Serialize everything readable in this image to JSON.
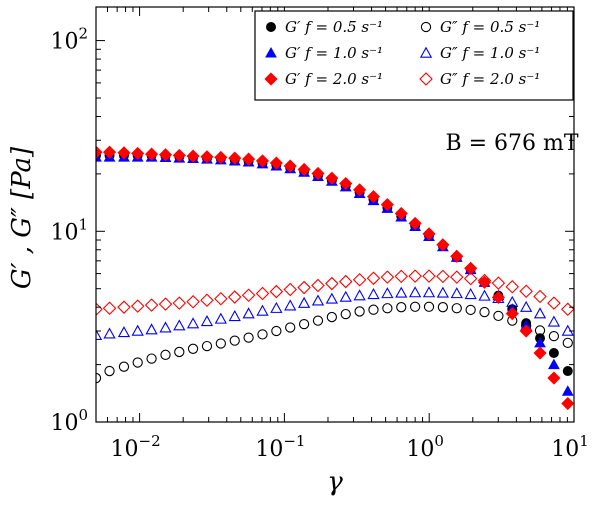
{
  "chart_data": {
    "type": "scatter",
    "title": "",
    "xlabel": "γ",
    "ylabel": "G′ , G″ [Pa]",
    "xscale": "log",
    "yscale": "log",
    "xlim": [
      0.005,
      10
    ],
    "ylim": [
      1,
      150
    ],
    "grid": false,
    "legend_position": "top-right",
    "annotation": "B = 676 mT",
    "x_tick_labels": [
      {
        "label": "10",
        "exp": "−2",
        "value": 0.01
      },
      {
        "label": "10",
        "exp": "−1",
        "value": 0.1
      },
      {
        "label": "10",
        "exp": "0",
        "value": 1
      },
      {
        "label": "10",
        "exp": "1",
        "value": 10
      }
    ],
    "y_tick_labels": [
      {
        "label": "10",
        "exp": "0",
        "value": 1
      },
      {
        "label": "10",
        "exp": "1",
        "value": 10
      },
      {
        "label": "10",
        "exp": "2",
        "value": 100
      }
    ],
    "x": [
      0.005,
      0.0062,
      0.0078,
      0.0097,
      0.0121,
      0.0151,
      0.0188,
      0.0234,
      0.0292,
      0.0364,
      0.0454,
      0.0566,
      0.0706,
      0.088,
      0.1097,
      0.1368,
      0.1706,
      0.2127,
      0.2652,
      0.3307,
      0.4124,
      0.5142,
      0.6412,
      0.7995,
      0.997,
      1.243,
      1.55,
      1.933,
      2.41,
      3.005,
      3.747,
      4.672,
      5.826,
      7.264,
      9.058
    ],
    "series": [
      {
        "name": "G′  f = 0.5 s⁻¹",
        "color": "#000000",
        "marker": "circle",
        "filled": true,
        "values": [
          25,
          25,
          25,
          25,
          25,
          24.8,
          24.6,
          24.4,
          24.2,
          24,
          23.7,
          23.3,
          22.8,
          22.2,
          21.5,
          20.6,
          19.6,
          18.5,
          17.3,
          16,
          14.7,
          13.3,
          12,
          10.7,
          9.5,
          8.4,
          7.3,
          6.3,
          5.4,
          4.6,
          3.9,
          3.3,
          2.75,
          2.3,
          1.85
        ]
      },
      {
        "name": "G″  f = 0.5 s⁻¹",
        "color": "#000000",
        "marker": "circle",
        "filled": false,
        "values": [
          1.7,
          1.85,
          1.95,
          2.05,
          2.15,
          2.25,
          2.33,
          2.42,
          2.5,
          2.58,
          2.67,
          2.77,
          2.88,
          3.0,
          3.13,
          3.26,
          3.4,
          3.55,
          3.68,
          3.8,
          3.88,
          3.95,
          4.0,
          4.02,
          4.02,
          4.0,
          3.95,
          3.87,
          3.77,
          3.6,
          3.4,
          3.2,
          3.02,
          2.82,
          2.6
        ]
      },
      {
        "name": "G′  f = 1.0 s⁻¹",
        "color": "#0000ff",
        "marker": "triangle",
        "filled": true,
        "values": [
          24.5,
          24.5,
          24.5,
          24.5,
          24.5,
          24.4,
          24.2,
          24.1,
          23.9,
          23.7,
          23.4,
          23.1,
          22.6,
          22,
          21.3,
          20.4,
          19.4,
          18.3,
          17.1,
          15.8,
          14.5,
          13.2,
          11.9,
          10.6,
          9.4,
          8.3,
          7.3,
          6.3,
          5.4,
          4.6,
          3.9,
          3.2,
          2.6,
          2.0,
          1.45
        ]
      },
      {
        "name": "G″  f = 1.0 s⁻¹",
        "color": "#0000ff",
        "marker": "triangle",
        "filled": false,
        "values": [
          2.85,
          2.9,
          2.95,
          3.0,
          3.05,
          3.12,
          3.2,
          3.28,
          3.37,
          3.47,
          3.58,
          3.7,
          3.82,
          3.95,
          4.07,
          4.2,
          4.32,
          4.42,
          4.52,
          4.6,
          4.67,
          4.72,
          4.75,
          4.77,
          4.77,
          4.75,
          4.72,
          4.67,
          4.58,
          4.45,
          4.25,
          4.0,
          3.7,
          3.35,
          3.0
        ]
      },
      {
        "name": "G′  f = 2.0 s⁻¹",
        "color": "#ff0000",
        "marker": "diamond",
        "filled": true,
        "values": [
          26,
          26,
          25.8,
          25.6,
          25.4,
          25.2,
          25,
          24.8,
          24.6,
          24.4,
          24.2,
          23.9,
          23.4,
          22.8,
          22,
          21.1,
          20.1,
          19,
          17.8,
          16.5,
          15.2,
          13.8,
          12.4,
          11,
          9.7,
          8.5,
          7.4,
          6.4,
          5.4,
          4.5,
          3.7,
          3.0,
          2.3,
          1.7,
          1.25
        ]
      },
      {
        "name": "G″  f = 2.0 s⁻¹",
        "color": "#ff0000",
        "marker": "diamond",
        "filled": false,
        "values": [
          3.9,
          3.95,
          4.0,
          4.05,
          4.1,
          4.15,
          4.2,
          4.27,
          4.35,
          4.43,
          4.52,
          4.62,
          4.72,
          4.83,
          4.95,
          5.07,
          5.2,
          5.32,
          5.45,
          5.57,
          5.67,
          5.75,
          5.8,
          5.82,
          5.82,
          5.8,
          5.75,
          5.65,
          5.52,
          5.35,
          5.12,
          4.85,
          4.55,
          4.2,
          3.9
        ]
      }
    ]
  }
}
